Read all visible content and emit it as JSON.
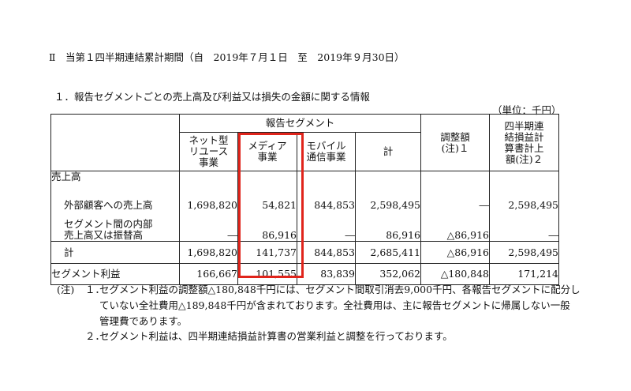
{
  "period_heading": "Ⅱ　当第１四半期連結累計期間（自　2019年７月１日　至　2019年９月30日）",
  "section_heading": "１．報告セグメントごとの売上高及び利益又は損失の金額に関する情報",
  "unit": "（単位：千円）",
  "table": {
    "group_header": "報告セグメント",
    "col_reuse": "ネット型\nリユース\n事業",
    "col_media": "メディア\n事業",
    "col_mobile": "モバイル\n通信事業",
    "col_subtotal": "計",
    "col_adjust": "調整額\n(注)１",
    "col_consolidated": "四半期連\n結損益計\n算書計上\n額(注)２",
    "rows": {
      "sales": {
        "label": "売上高"
      },
      "external": {
        "label": "外部顧客への売上高",
        "reuse": "1,698,820",
        "media": "54,821",
        "mobile": "844,853",
        "subtotal": "2,598,495",
        "adjust": "―",
        "consolidated": "2,598,495"
      },
      "internal": {
        "label": "セグメント間の内部\n売上高又は振替高",
        "reuse": "―",
        "media": "86,916",
        "mobile": "―",
        "subtotal": "86,916",
        "adjust": "△86,916",
        "consolidated": "―"
      },
      "total": {
        "label": "計",
        "reuse": "1,698,820",
        "media": "141,737",
        "mobile": "844,853",
        "subtotal": "2,685,411",
        "adjust": "△86,916",
        "consolidated": "2,598,495"
      },
      "profit": {
        "label": "セグメント利益",
        "reuse": "166,667",
        "media": "101,555",
        "mobile": "83,839",
        "subtotal": "352,062",
        "adjust": "△180,848",
        "consolidated": "171,214"
      }
    }
  },
  "notes": {
    "mark": "(注)",
    "n1_num": "１．",
    "n1_line1": "セグメント利益の調整額△180,848千円には、セグメント間取引消去9,000千円、各報告セグメントに配分し",
    "n1_line2": "ていない全社費用△189,848千円が含まれております。全社費用は、主に報告セグメントに帰属しない一般",
    "n1_line3": "管理費であります。",
    "n2_num": "２．",
    "n2_line1": "セグメント利益は、四半期連結損益計算書の営業利益と調整を行っております。"
  },
  "highlight_color": "#e0241b"
}
